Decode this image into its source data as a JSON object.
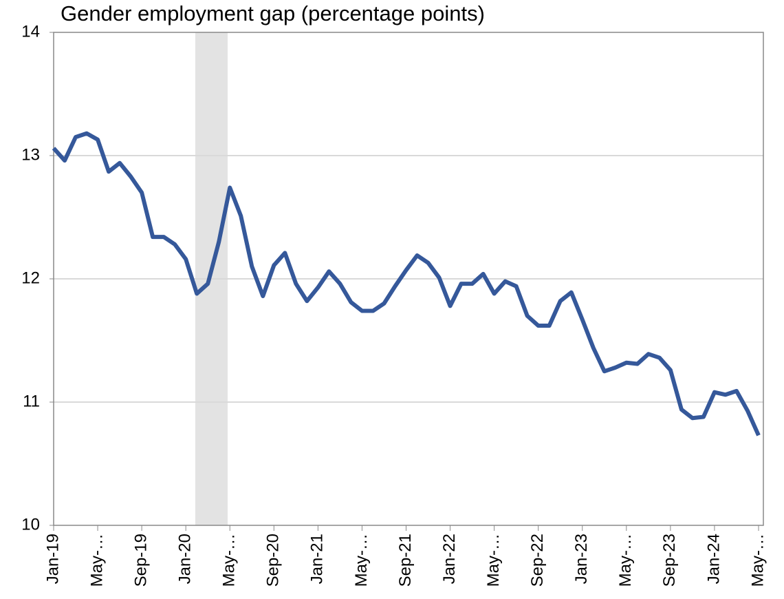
{
  "chart_data": {
    "type": "line",
    "title": "Gender employment gap (percentage points)",
    "categories": [
      "Jan-19",
      null,
      null,
      null,
      "May-…",
      null,
      null,
      null,
      "Sep-19",
      null,
      null,
      null,
      "Jan-20",
      null,
      null,
      null,
      "May-…",
      null,
      null,
      null,
      "Sep-20",
      null,
      null,
      null,
      "Jan-21",
      null,
      null,
      null,
      "May-…",
      null,
      null,
      null,
      "Sep-21",
      null,
      null,
      null,
      "Jan-22",
      null,
      null,
      null,
      "May-…",
      null,
      null,
      null,
      "Sep-22",
      null,
      null,
      null,
      "Jan-23",
      null,
      null,
      null,
      "May-…",
      null,
      null,
      null,
      "Sep-23",
      null,
      null,
      null,
      "Jan-24",
      null,
      null,
      null,
      "May-…"
    ],
    "series": [
      {
        "color": "#35589a",
        "values": [
          13.06,
          12.96,
          13.15,
          13.18,
          13.13,
          12.87,
          12.94,
          12.83,
          12.7,
          12.34,
          12.34,
          12.28,
          12.16,
          11.88,
          11.96,
          12.3,
          12.74,
          12.51,
          12.1,
          11.86,
          12.11,
          12.21,
          11.96,
          11.82,
          11.93,
          12.06,
          11.96,
          11.81,
          11.74,
          11.74,
          11.8,
          11.94,
          12.07,
          12.19,
          12.13,
          12.01,
          11.78,
          11.96,
          11.96,
          12.04,
          11.88,
          11.98,
          11.94,
          11.7,
          11.62,
          11.62,
          11.82,
          11.89,
          11.67,
          11.44,
          11.25,
          11.28,
          11.32,
          11.31,
          11.39,
          11.36,
          11.26,
          10.94,
          10.87,
          10.88,
          11.08,
          11.06,
          11.09,
          10.93,
          10.73
        ]
      }
    ],
    "shade": [
      12.86,
      15.8
    ],
    "shade_color": "#e3e3e3",
    "ylim": [
      10,
      14
    ],
    "yticks": [
      10,
      11,
      12,
      13,
      14
    ],
    "grid": true
  }
}
